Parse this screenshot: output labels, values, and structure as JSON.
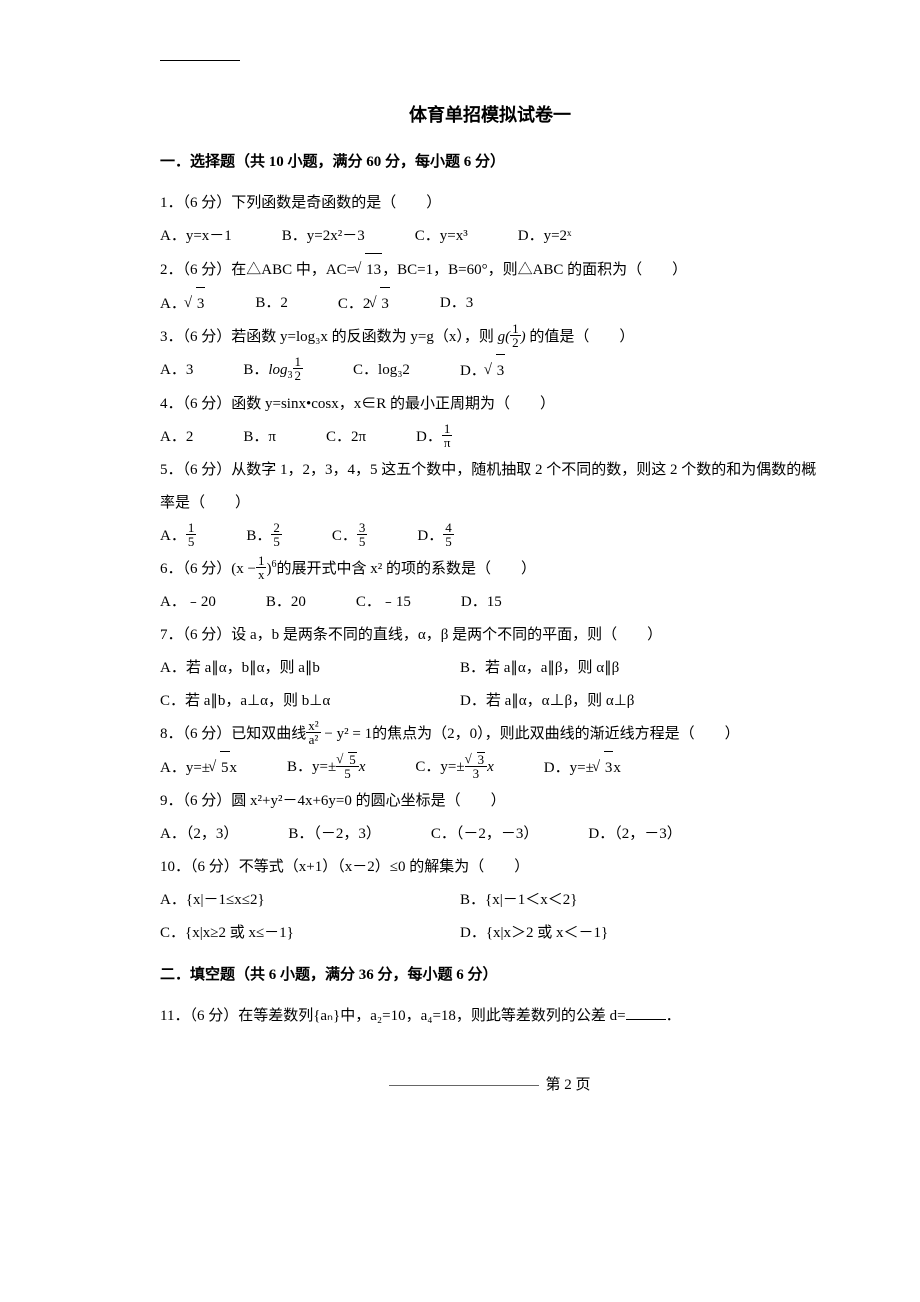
{
  "title": "体育单招模拟试卷一",
  "section1_head": "一．选择题（共 10 小题，满分 60 分，每小题 6 分）",
  "section2_head": "二．填空题（共 6 小题，满分 36 分，每小题 6 分）",
  "q1": {
    "stem": "1．（6 分）下列函数是奇函数的是（　　）",
    "A": "A．y=x－1",
    "B": "B．y=2x²－3",
    "C": "C．y=x³",
    "D": "D．y=2ˣ"
  },
  "q2": {
    "stem_pre": "2．（6 分）在△ABC 中，AC=",
    "stem_post": "，BC=1，B=60°，则△ABC 的面积为（　　）",
    "rad": "13",
    "A": "A．",
    "A_rad": "3",
    "B": "B．2",
    "C_pre": "C．2",
    "C_rad": "3",
    "D": "D．3"
  },
  "q3": {
    "stem_pre": "3．（6 分）若函数 y=log₃x 的反函数为 y=g（x），则",
    "g_label": "g(",
    "g_num": "1",
    "g_den": "2",
    "g_close": ")",
    "stem_post": "的值是（　　）",
    "A": "A．3",
    "B_pre": "B．",
    "B_log": "log",
    "B_base": "3",
    "B_num": "1",
    "B_den": "2",
    "C": "C．log₃2",
    "D_pre": "D．",
    "D_rad": "3"
  },
  "q4": {
    "stem": "4．（6 分）函数 y=sinx•cosx，x∈R 的最小正周期为（　　）",
    "A": "A．2",
    "B": "B．π",
    "C": "C．2π",
    "D_pre": "D．",
    "D_num": "1",
    "D_den": "π"
  },
  "q5": {
    "stem": "5．（6 分）从数字 1，2，3，4，5 这五个数中，随机抽取 2 个不同的数，则这 2 个数的和为偶数的概率是（　　）",
    "A_pre": "A．",
    "B_pre": "B．",
    "C_pre": "C．",
    "D_pre": "D．",
    "A_num": "1",
    "A_den": "5",
    "B_num": "2",
    "B_den": "5",
    "C_num": "3",
    "C_den": "5",
    "D_num": "4",
    "D_den": "5"
  },
  "q6": {
    "stem_pre": "6．（6 分）",
    "expr_open": "(x −",
    "expr_num": "1",
    "expr_den": "x",
    "expr_close": ")",
    "expr_pow": "6",
    "stem_post": "的展开式中含 x² 的项的系数是（　　）",
    "A": "A．﹣20",
    "B": "B．20",
    "C": "C．﹣15",
    "D": "D．15"
  },
  "q7": {
    "stem": "7．（6 分）设 a，b 是两条不同的直线，α，β 是两个不同的平面，则（　　）",
    "A": "A．若 a∥α，b∥α，则 a∥b",
    "B": "B．若 a∥α，a∥β，则 α∥β",
    "C": "C．若 a∥b，a⊥α，则 b⊥α",
    "D": "D．若 a∥α，α⊥β，则 α⊥β"
  },
  "q8": {
    "stem_pre": "8．（6 分）已知双曲线",
    "eq_num": "x²",
    "eq_den": "a²",
    "eq_mid": "− y² = 1",
    "stem_post": "的焦点为（2，0），则此双曲线的渐近线方程是（　　）",
    "A_pre": "A．y=±",
    "A_rad": "5",
    "A_post": "x",
    "B_pre": "B．y=",
    "B_pm": "±",
    "B_num_rad": "5",
    "B_den": "5",
    "B_x": "x",
    "C_pre": "C．y=",
    "C_pm": "±",
    "C_num_rad": "3",
    "C_den": "3",
    "C_x": "x",
    "D_pre": "D．y=±",
    "D_rad": "3",
    "D_post": "x"
  },
  "q9": {
    "stem": "9．（6 分）圆 x²+y²－4x+6y=0 的圆心坐标是（　　）",
    "A": "A．（2，3）",
    "B": "B．（－2，3）",
    "C": "C．（－2，－3）",
    "D": "D．（2，－3）"
  },
  "q10": {
    "stem": "10．（6 分）不等式（x+1）（x－2）≤0 的解集为（　　）",
    "A": "A．{x|－1≤x≤2}",
    "B": "B．{x|－1＜x＜2}",
    "C": "C．{x|x≥2 或 x≤－1}",
    "D": "D．{x|x＞2 或 x＜－1}"
  },
  "q11": {
    "stem_pre": "11．（6 分）在等差数列{aₙ}中，a₂=10，a₄=18，则此等差数列的公差 d=",
    "stem_post": "．"
  },
  "footer": "第 2 页"
}
